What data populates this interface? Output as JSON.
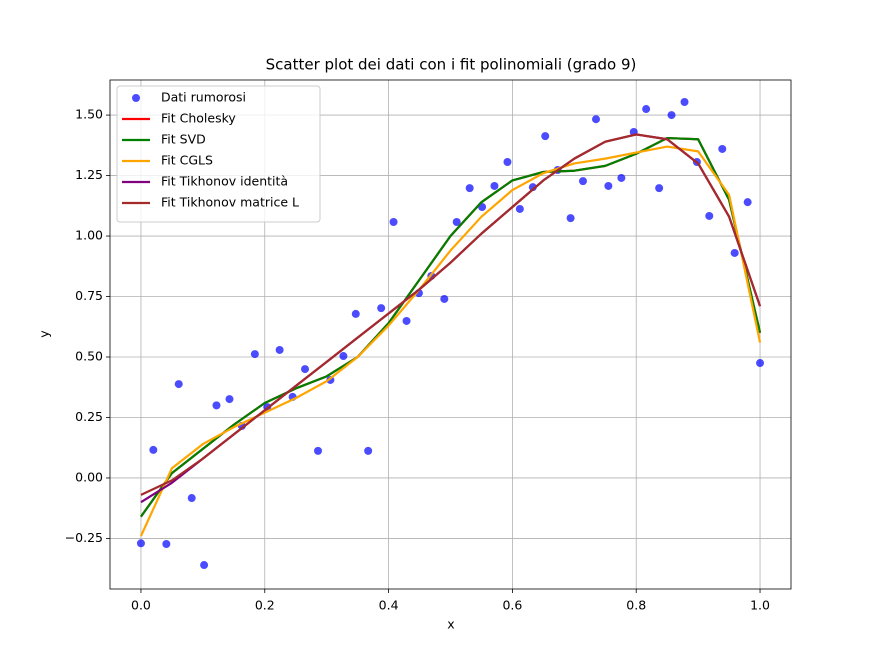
{
  "chart_data": {
    "type": "scatter",
    "title": "Scatter plot dei dati con i fit polinomiali (grado 9)",
    "x_label": "x",
    "y_label": "y",
    "xlim": [
      -0.05,
      1.05
    ],
    "ylim": [
      -0.459,
      1.645
    ],
    "xticks": [
      {
        "value": 0,
        "label": "0.0"
      },
      {
        "value": 0.2,
        "label": "0.2"
      },
      {
        "value": 0.4,
        "label": "0.4"
      },
      {
        "value": 0.6,
        "label": "0.6"
      },
      {
        "value": 0.8,
        "label": "0.8"
      },
      {
        "value": 1,
        "label": "1.0"
      }
    ],
    "yticks": [
      {
        "value": -0.25,
        "label": "−0.25"
      },
      {
        "value": 0,
        "label": "0.00"
      },
      {
        "value": 0.25,
        "label": "0.25"
      },
      {
        "value": 0.5,
        "label": "0.50"
      },
      {
        "value": 0.75,
        "label": "0.75"
      },
      {
        "value": 1,
        "label": "1.00"
      },
      {
        "value": 1.25,
        "label": "1.25"
      },
      {
        "value": 1.5,
        "label": "1.50"
      }
    ],
    "grid": true,
    "legend": "upper left",
    "series": [
      {
        "name": "Dati rumorosi",
        "type": "scatter",
        "color": "#0000ff",
        "x": [
          0,
          0.02,
          0.041,
          0.061,
          0.082,
          0.102,
          0.122,
          0.143,
          0.163,
          0.184,
          0.204,
          0.224,
          0.245,
          0.265,
          0.286,
          0.306,
          0.327,
          0.347,
          0.367,
          0.388,
          0.408,
          0.429,
          0.449,
          0.469,
          0.49,
          0.51,
          0.531,
          0.551,
          0.571,
          0.592,
          0.612,
          0.633,
          0.653,
          0.673,
          0.694,
          0.714,
          0.735,
          0.755,
          0.776,
          0.796,
          0.816,
          0.837,
          0.857,
          0.878,
          0.898,
          0.918,
          0.939,
          0.959,
          0.98,
          1
        ],
        "values": [
          -0.27,
          0.116,
          -0.273,
          0.388,
          -0.083,
          -0.36,
          0.3,
          0.326,
          0.215,
          0.512,
          0.293,
          0.529,
          0.335,
          0.45,
          0.112,
          0.405,
          0.504,
          0.678,
          0.112,
          0.702,
          1.058,
          0.649,
          0.764,
          0.835,
          0.74,
          1.058,
          1.198,
          1.12,
          1.207,
          1.306,
          1.112,
          1.202,
          1.413,
          1.273,
          1.074,
          1.227,
          1.483,
          1.207,
          1.24,
          1.43,
          1.525,
          1.198,
          1.5,
          1.554,
          1.306,
          1.083,
          1.36,
          0.93,
          1.14,
          0.475
        ]
      },
      {
        "name": "Fit Cholesky",
        "type": "line",
        "color": "#ff0000",
        "x": [
          0,
          0.05,
          0.1,
          0.15,
          0.2,
          0.25,
          0.3,
          0.35,
          0.4,
          0.45,
          0.5,
          0.55,
          0.6,
          0.65,
          0.7,
          0.75,
          0.8,
          0.85,
          0.9,
          0.95,
          1
        ],
        "values": [
          -0.16,
          0.02,
          0.12,
          0.22,
          0.31,
          0.37,
          0.42,
          0.5,
          0.64,
          0.82,
          1.0,
          1.14,
          1.23,
          1.265,
          1.27,
          1.29,
          1.34,
          1.405,
          1.4,
          1.15,
          0.6
        ]
      },
      {
        "name": "Fit SVD",
        "type": "line",
        "color": "#008000",
        "x": [
          0,
          0.05,
          0.1,
          0.15,
          0.2,
          0.25,
          0.3,
          0.35,
          0.4,
          0.45,
          0.5,
          0.55,
          0.6,
          0.65,
          0.7,
          0.75,
          0.8,
          0.85,
          0.9,
          0.95,
          1
        ],
        "values": [
          -0.16,
          0.02,
          0.12,
          0.22,
          0.31,
          0.37,
          0.42,
          0.5,
          0.64,
          0.82,
          1.0,
          1.14,
          1.23,
          1.265,
          1.27,
          1.29,
          1.34,
          1.405,
          1.4,
          1.15,
          0.6
        ]
      },
      {
        "name": "Fit CGLS",
        "type": "line",
        "color": "#ffa500",
        "x": [
          0,
          0.05,
          0.1,
          0.15,
          0.2,
          0.25,
          0.3,
          0.35,
          0.4,
          0.45,
          0.5,
          0.55,
          0.6,
          0.65,
          0.7,
          0.75,
          0.8,
          0.85,
          0.9,
          0.95,
          1
        ],
        "values": [
          -0.24,
          0.04,
          0.14,
          0.21,
          0.27,
          0.33,
          0.4,
          0.5,
          0.63,
          0.78,
          0.94,
          1.08,
          1.19,
          1.26,
          1.3,
          1.32,
          1.345,
          1.37,
          1.35,
          1.17,
          0.56
        ]
      },
      {
        "name": "Fit Tikhonov identità",
        "type": "line",
        "color": "#800080",
        "x": [
          0,
          0.05,
          0.1,
          0.15,
          0.2,
          0.25,
          0.3,
          0.35,
          0.4,
          0.45,
          0.5,
          0.55,
          0.6,
          0.65,
          0.7,
          0.75,
          0.8,
          0.85,
          0.9,
          0.95,
          1
        ],
        "values": [
          -0.1,
          -0.02,
          0.08,
          0.18,
          0.28,
          0.38,
          0.48,
          0.58,
          0.68,
          0.78,
          0.89,
          1.01,
          1.12,
          1.23,
          1.32,
          1.39,
          1.42,
          1.4,
          1.3,
          1.08,
          0.71
        ]
      },
      {
        "name": "Fit Tikhonov matrice L",
        "type": "line",
        "color": "#a52a2a",
        "x": [
          0,
          0.05,
          0.1,
          0.15,
          0.2,
          0.25,
          0.3,
          0.35,
          0.4,
          0.45,
          0.5,
          0.55,
          0.6,
          0.65,
          0.7,
          0.75,
          0.8,
          0.85,
          0.9,
          0.95,
          1
        ],
        "values": [
          -0.07,
          -0.01,
          0.08,
          0.18,
          0.28,
          0.38,
          0.48,
          0.58,
          0.68,
          0.78,
          0.89,
          1.01,
          1.12,
          1.23,
          1.32,
          1.39,
          1.42,
          1.4,
          1.3,
          1.08,
          0.71
        ]
      }
    ]
  }
}
